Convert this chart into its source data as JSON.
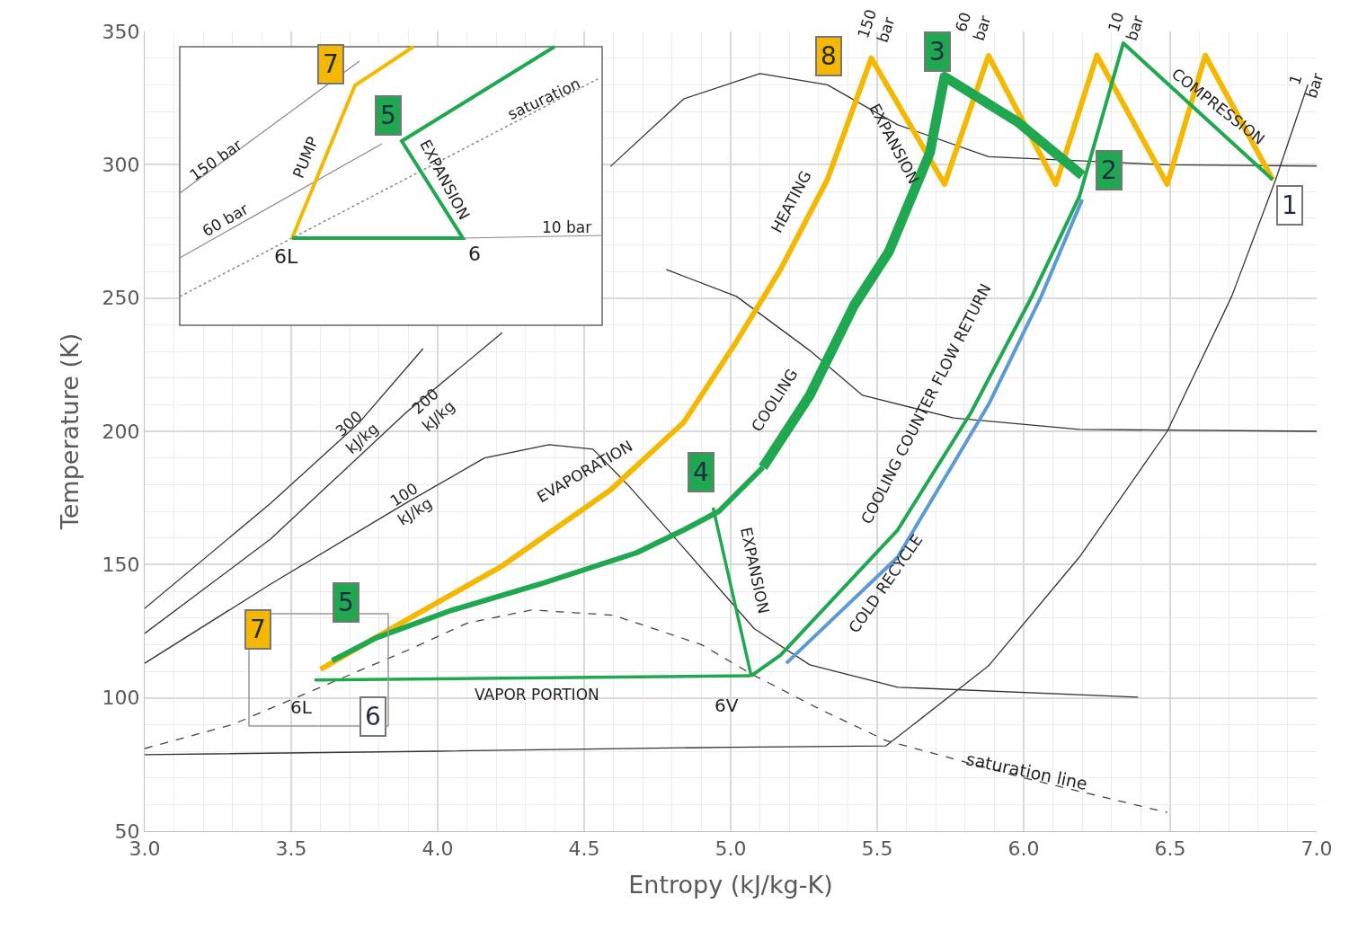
{
  "chart_data": [
    {
      "type": "line",
      "xlabel": "Entropy (kJ/kg-K)",
      "ylabel": "Temperature (K)",
      "xlim": [
        3.0,
        7.0
      ],
      "ylim": [
        50,
        350
      ],
      "xticks": [
        {
          "value": 3.0,
          "label": "3.0"
        },
        {
          "value": 3.5,
          "label": "3.5"
        },
        {
          "value": 4.0,
          "label": "4.0"
        },
        {
          "value": 4.5,
          "label": "4.5"
        },
        {
          "value": 5.0,
          "label": "5.0"
        },
        {
          "value": 5.5,
          "label": "5.5"
        },
        {
          "value": 6.0,
          "label": "6.0"
        },
        {
          "value": 6.5,
          "label": "6.5"
        },
        {
          "value": 7.0,
          "label": "7.0"
        }
      ],
      "yticks": [
        50,
        100,
        150,
        200,
        250,
        300,
        350
      ],
      "grid": true,
      "marker": "none",
      "series": [
        {
          "color": "#444444",
          "line_style": "dashed",
          "x": [
            3.0,
            3.3,
            3.6,
            3.9,
            4.1,
            4.32,
            4.6,
            4.9,
            5.07,
            5.3,
            5.53,
            6.0,
            6.49
          ],
          "values": [
            81,
            90,
            104,
            118,
            128,
            133,
            131,
            120,
            109,
            96,
            84,
            70,
            57
          ]
        },
        {
          "color": "#333333",
          "x": [
            3.0,
            3.43,
            3.73,
            3.95,
            4.35,
            4.59,
            4.84,
            5.1,
            5.33,
            5.57,
            5.88,
            6.49,
            7.0
          ],
          "values": [
            133.6,
            173,
            203,
            231,
            null,
            299.4,
            324.7,
            334.2,
            330,
            315,
            303,
            300,
            299.5
          ]
        },
        {
          "color": "#333333",
          "x": [
            3.0,
            3.43,
            3.89,
            4.22,
            4.53,
            4.78,
            5.02,
            5.27,
            5.45,
            5.76,
            6.19,
            7.0
          ],
          "values": [
            124.2,
            159.6,
            206.8,
            237,
            null,
            260.7,
            250.6,
            230.3,
            213.5,
            205,
            200.7,
            200
          ]
        },
        {
          "color": "#333333",
          "x": [
            3.0,
            3.43,
            3.89,
            4.16,
            4.38,
            4.53,
            4.65,
            4.84,
            5.08,
            5.27,
            5.57,
            6.39
          ],
          "values": [
            113,
            142.7,
            173,
            190,
            195,
            193.3,
            179.8,
            156.2,
            126,
            112.4,
            104,
            100.3
          ]
        },
        {
          "color": "#333333",
          "x": [
            3.0,
            4.0,
            5.0,
            5.53,
            5.57,
            5.88,
            6.19,
            6.49,
            6.71,
            6.86,
            6.97
          ],
          "values": [
            78.7,
            80,
            81.5,
            82,
            85.4,
            112,
            152.8,
            200,
            250.6,
            294.4,
            330
          ]
        },
        {
          "color": "#f5b800",
          "x": [
            3.6,
            3.89,
            4.22,
            4.59,
            4.84,
            5.02,
            5.17,
            5.33,
            5.48,
            5.73,
            5.88,
            6.11,
            6.25,
            6.49,
            6.62,
            6.85
          ],
          "values": [
            110.7,
            129,
            149.5,
            178,
            203.4,
            233.7,
            260.7,
            294.4,
            340,
            292.7,
            340.9,
            292.7,
            341,
            292.7,
            341,
            294.4
          ]
        },
        {
          "color": "#1fa84f",
          "x": [
            5.07,
            5.17,
            5.57,
            5.82,
            6.03,
            6.19,
            6.34,
            6.85
          ],
          "values": [
            108.3,
            116,
            163,
            207,
            251,
            288,
            345.6,
            294.4
          ]
        },
        {
          "color": "#5b9bd5",
          "x": [
            5.19,
            5.57,
            5.88,
            6.06,
            6.2
          ],
          "values": [
            113,
            152.8,
            210,
            250.6,
            287
          ]
        },
        {
          "color": "#1fa84f",
          "x": [
            6.2,
            5.98,
            5.73,
            5.68,
            5.54,
            5.42,
            5.27,
            5.11
          ],
          "values": [
            296,
            316,
            333,
            304.5,
            267.4,
            247,
            213.5,
            186.5
          ]
        },
        {
          "color": "#1fa84f",
          "x": [
            5.11,
            4.96,
            4.84,
            4.68,
            4.35,
            4.04,
            3.79,
            3.64
          ],
          "values": [
            186.5,
            170,
            163,
            154.5,
            142.7,
            132.6,
            122.5,
            114
          ]
        },
        {
          "color": "#1fa84f",
          "x": [
            4.94,
            5.02,
            5.07
          ],
          "values": [
            171.4,
            132.6,
            108.3
          ]
        },
        {
          "color": "#1fa84f",
          "x": [
            5.07,
            3.58
          ],
          "values": [
            108.3,
            106.7
          ]
        }
      ],
      "annotations": [
        "8",
        "3",
        "2",
        "1",
        "4",
        "5",
        "7",
        "6",
        "COMPRESSION",
        "EXPANSION",
        "HEATING",
        "COOLING",
        "EVAPORATION",
        "COOLING COUNTER FLOW RETURN",
        "COLD RECYCLE",
        "EXPANSION",
        "VAPOR PORTION",
        "6V",
        "6L",
        "saturation line",
        "300\nkJ/kg",
        "200\nkJ/kg",
        "100\nkJ/kg",
        "150\nbar",
        "60\nbar",
        "10\nbar",
        "1\nbar"
      ]
    },
    {
      "type": "other",
      "annotations": [
        "7",
        "5",
        "6L",
        "6",
        "150 bar",
        "60 bar",
        "saturation",
        "PUMP",
        "EXPANSION",
        "10 bar"
      ]
    }
  ]
}
